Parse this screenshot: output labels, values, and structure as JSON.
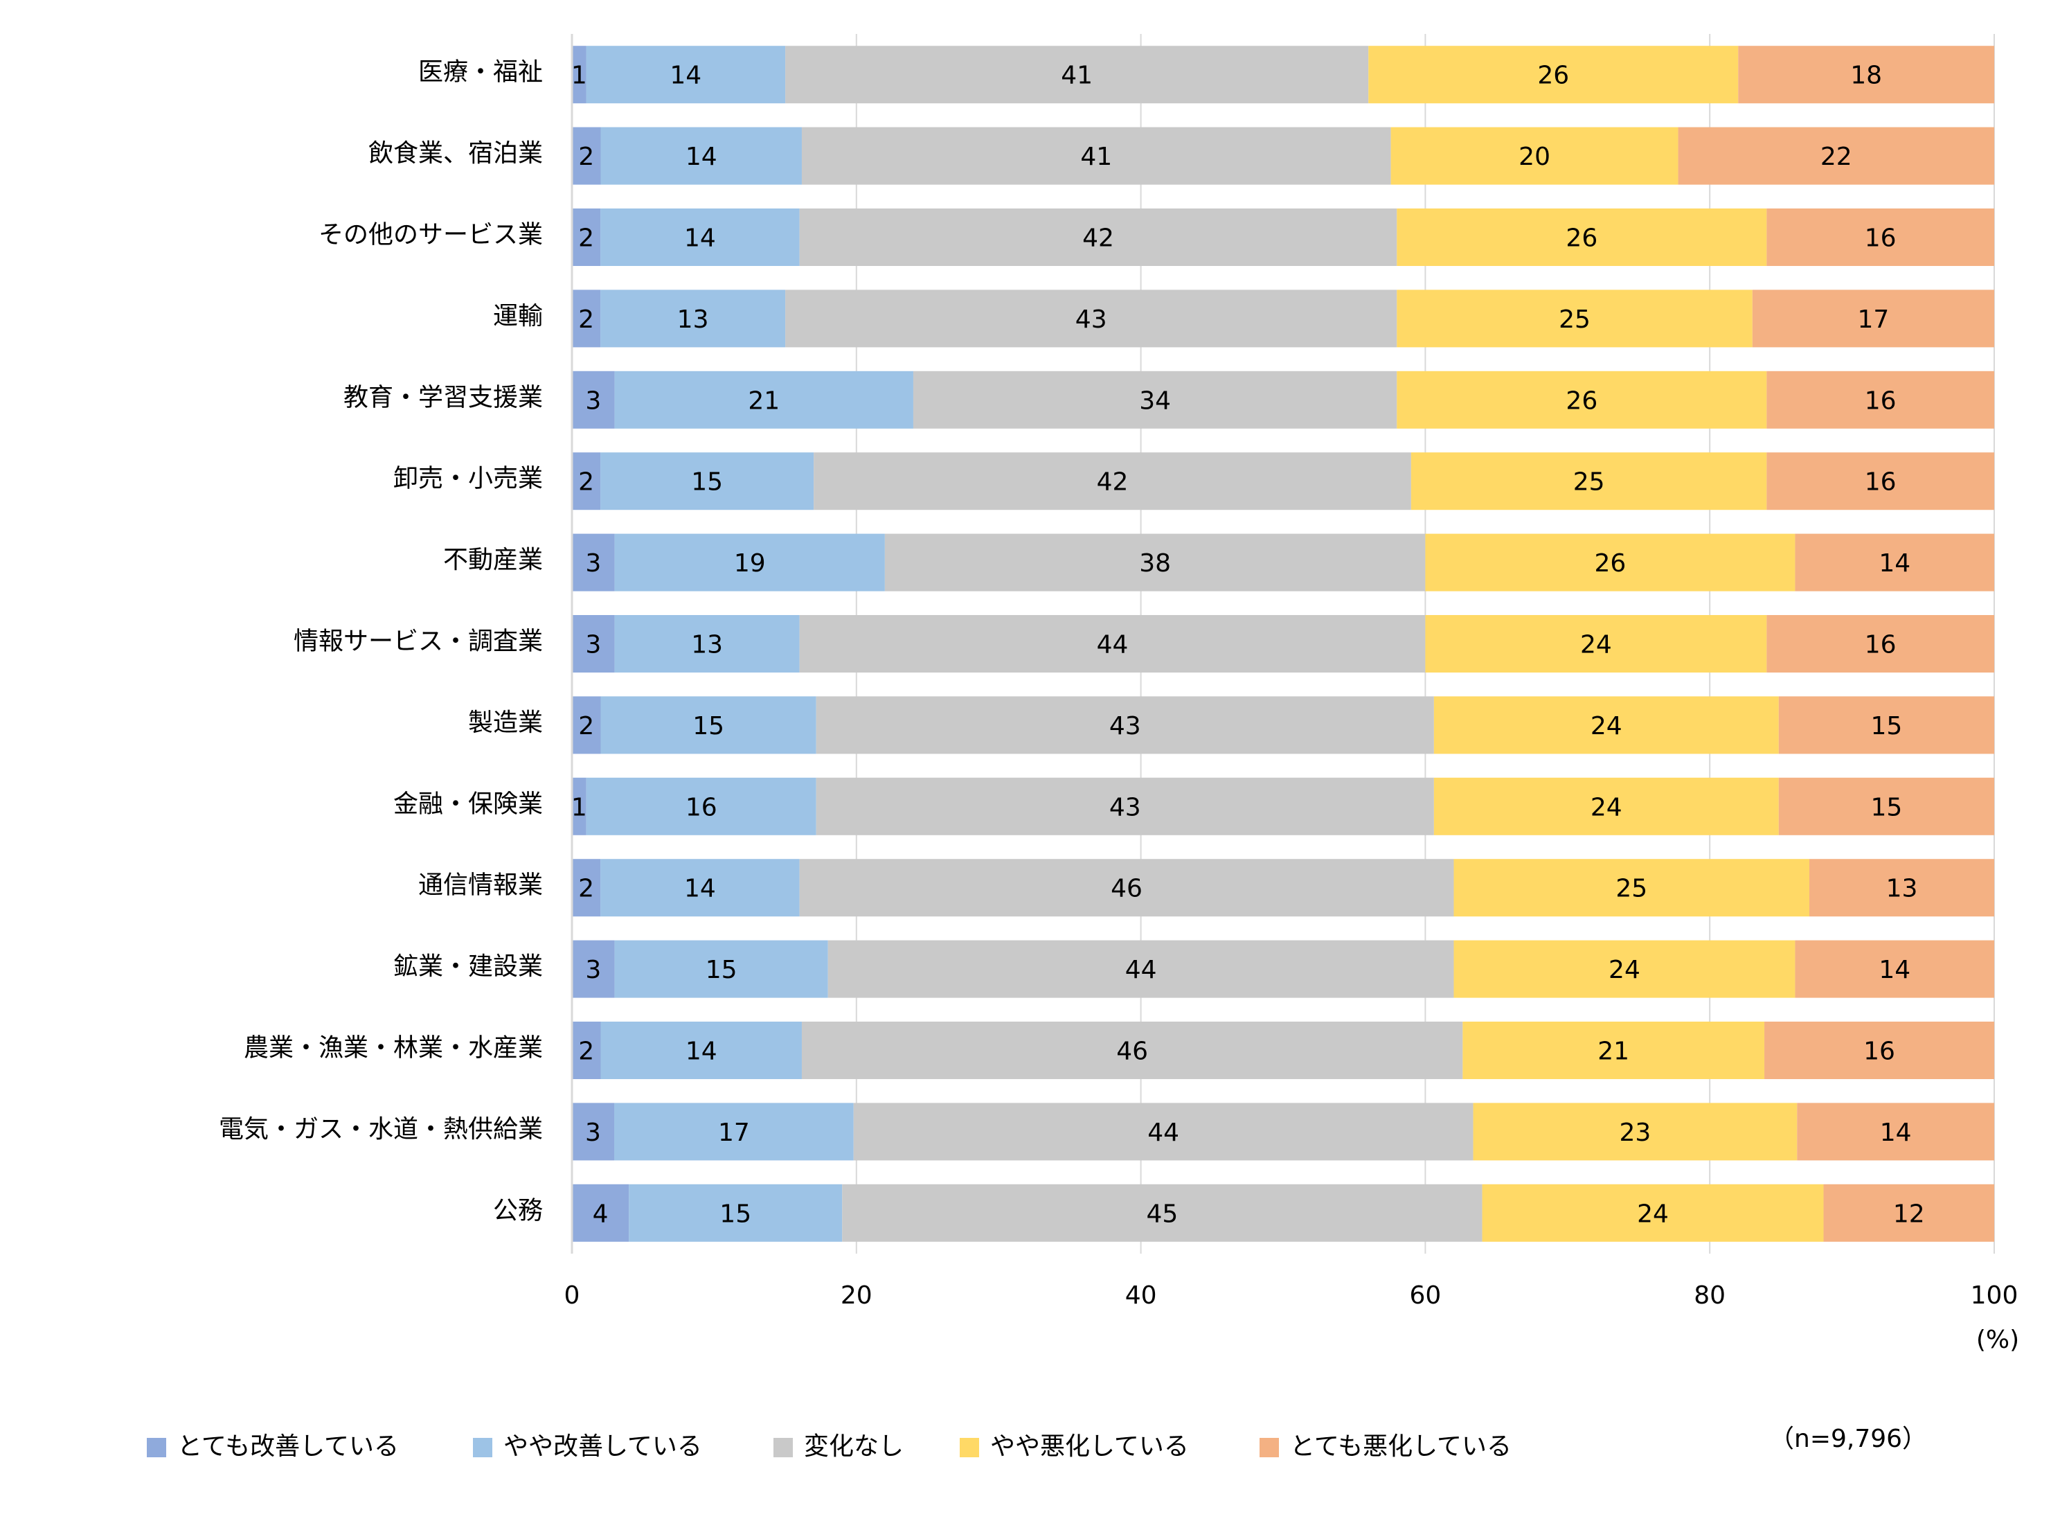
{
  "chart_data": {
    "type": "bar",
    "orientation": "horizontal",
    "stacked": "percent",
    "title": "",
    "xlabel": "",
    "ylabel": "",
    "x_unit_label": "(%)",
    "xlim": [
      0,
      100
    ],
    "x_ticks": [
      "0",
      "20",
      "40",
      "60",
      "80",
      "100"
    ],
    "grid": true,
    "legend_position": "bottom",
    "sample_note": "（n=9,796）",
    "categories": [
      "医療・福祉",
      "飲食業、宿泊業",
      "その他のサービス業",
      "運輸",
      "教育・学習支援業",
      "卸売・小売業",
      "不動産業",
      "情報サービス・調査業",
      "製造業",
      "金融・保険業",
      "通信情報業",
      "鉱業・建設業",
      "農業・漁業・林業・水産業",
      "電気・ガス・水道・熱供給業",
      "公務"
    ],
    "series": [
      {
        "name": "とても改善している",
        "color": "#8FAADC",
        "values": [
          1,
          2,
          2,
          2,
          3,
          2,
          3,
          3,
          2,
          1,
          2,
          3,
          2,
          3,
          4
        ]
      },
      {
        "name": "やや改善している",
        "color": "#9DC3E6",
        "values": [
          14,
          14,
          14,
          13,
          21,
          15,
          19,
          13,
          15,
          16,
          14,
          15,
          14,
          17,
          15
        ]
      },
      {
        "name": "変化なし",
        "color": "#C9C9C9",
        "values": [
          41,
          41,
          42,
          43,
          34,
          42,
          38,
          44,
          43,
          43,
          46,
          44,
          46,
          44,
          45
        ]
      },
      {
        "name": "やや悪化している",
        "color": "#FFD966",
        "values": [
          26,
          20,
          26,
          25,
          26,
          25,
          26,
          24,
          24,
          24,
          25,
          24,
          21,
          23,
          24
        ]
      },
      {
        "name": "とても悪化している",
        "color": "#F4B183",
        "values": [
          18,
          22,
          16,
          17,
          16,
          16,
          14,
          16,
          15,
          15,
          13,
          14,
          16,
          14,
          12
        ]
      }
    ]
  }
}
